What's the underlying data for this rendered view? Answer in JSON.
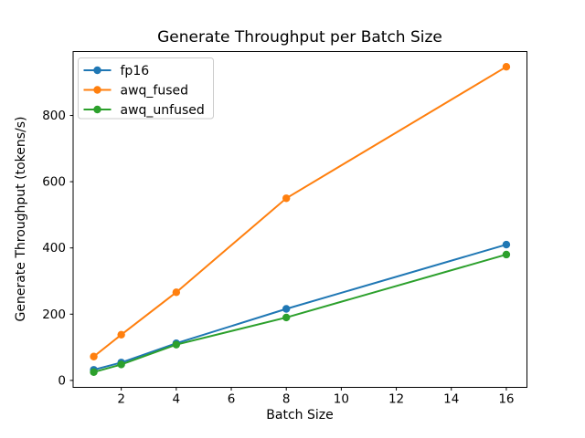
{
  "chart_data": {
    "type": "line",
    "title": "Generate Throughput per Batch Size",
    "xlabel": "Batch Size",
    "ylabel": "Generate Throughput (tokens/s)",
    "x": [
      1,
      2,
      4,
      8,
      16
    ],
    "series": [
      {
        "name": "fp16",
        "color": "#1f77b4",
        "values": [
          32,
          54,
          112,
          216,
          410
        ]
      },
      {
        "name": "awq_fused",
        "color": "#ff7f0e",
        "values": [
          72,
          138,
          266,
          550,
          947
        ]
      },
      {
        "name": "awq_unfused",
        "color": "#2ca02c",
        "values": [
          25,
          48,
          108,
          190,
          380
        ]
      }
    ],
    "xticks": [
      2,
      4,
      6,
      8,
      10,
      12,
      14,
      16
    ],
    "yticks": [
      0,
      200,
      400,
      600,
      800
    ],
    "xlim": [
      0.25,
      16.75
    ],
    "ylim": [
      -21,
      993
    ],
    "marker": "o",
    "grid": false,
    "legend_position": "upper left",
    "colors": {
      "axes": "#000000",
      "legend_border": "#cccccc",
      "background": "#ffffff"
    }
  }
}
